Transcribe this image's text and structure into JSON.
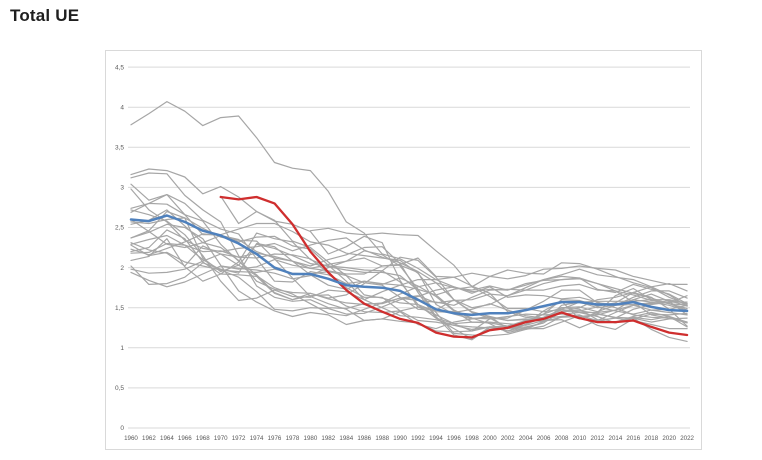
{
  "page": {
    "title": "Total UE"
  },
  "chart_data": {
    "type": "line",
    "title": "Total UE",
    "legend": "none",
    "grid": "horizontal",
    "x_years": [
      1960,
      1962,
      1964,
      1966,
      1968,
      1970,
      1972,
      1974,
      1976,
      1978,
      1980,
      1982,
      1984,
      1986,
      1988,
      1990,
      1992,
      1994,
      1996,
      1998,
      2000,
      2002,
      2004,
      2006,
      2008,
      2010,
      2012,
      2014,
      2016,
      2018,
      2020,
      2022
    ],
    "x_tick_labels": [
      "1960",
      "1962",
      "1964",
      "1966",
      "1968",
      "1970",
      "1972",
      "1974",
      "1976",
      "1978",
      "1980",
      "1982",
      "1984",
      "1986",
      "1988",
      "1990",
      "1992",
      "1994",
      "1996",
      "1998",
      "2000",
      "2002",
      "2004",
      "2006",
      "2008",
      "2010",
      "2012",
      "2014",
      "2016",
      "2018",
      "2020",
      "2022"
    ],
    "y_axis": {
      "min": 0,
      "max": 4.5,
      "tick_values": [
        0,
        0.5,
        1,
        1.5,
        2,
        2.5,
        3,
        3.5,
        4,
        4.5
      ],
      "tick_labels": [
        "0",
        "0,5",
        "1",
        "1,5",
        "2",
        "2,5",
        "3",
        "3,5",
        "4",
        "4,5"
      ]
    },
    "colors": {
      "member": "#a6a6a6",
      "highlight": "#cf2e2e",
      "average": "#4f81bd",
      "gridline": "#d9d9d9",
      "axis_text": "#595959",
      "border": "#d9d9d9",
      "title_text": "#1f1f1f"
    },
    "series": [
      {
        "name": "member-01",
        "role": "member",
        "values": [
          3.78,
          3.92,
          4.07,
          3.95,
          3.77,
          3.87,
          3.89,
          3.62,
          3.31,
          3.24,
          3.21,
          2.95,
          2.57,
          2.43,
          2.17,
          2.11,
          1.99,
          1.85,
          1.88,
          1.93,
          1.89,
          1.97,
          1.93,
          1.92,
          2.06,
          2.05,
          1.98,
          1.89,
          1.81,
          1.75,
          1.63,
          1.54
        ]
      },
      {
        "name": "member-02",
        "role": "member",
        "values": [
          2.74,
          2.8,
          2.91,
          2.8,
          2.59,
          2.48,
          2.42,
          2.11,
          1.83,
          1.82,
          1.95,
          1.91,
          1.8,
          1.83,
          1.8,
          1.78,
          1.73,
          1.66,
          1.73,
          1.76,
          1.89,
          1.86,
          1.9,
          1.98,
          1.99,
          2.02,
          1.99,
          1.97,
          1.89,
          1.84,
          1.79,
          1.79
        ]
      },
      {
        "name": "member-03",
        "role": "member",
        "values": [
          2.37,
          2.46,
          2.7,
          2.62,
          2.49,
          2.38,
          2.34,
          2.33,
          2.11,
          1.87,
          1.64,
          1.55,
          1.48,
          1.34,
          1.36,
          1.33,
          1.31,
          1.21,
          1.2,
          1.21,
          1.26,
          1.27,
          1.34,
          1.37,
          1.45,
          1.46,
          1.43,
          1.37,
          1.34,
          1.29,
          1.24,
          1.24
        ]
      },
      {
        "name": "member-04",
        "role": "member",
        "values": [
          2.37,
          2.44,
          2.54,
          2.5,
          2.36,
          2.03,
          1.71,
          1.57,
          1.46,
          1.39,
          1.44,
          1.41,
          1.29,
          1.34,
          1.36,
          1.45,
          1.29,
          1.24,
          1.32,
          1.36,
          1.38,
          1.34,
          1.36,
          1.33,
          1.38,
          1.39,
          1.41,
          1.47,
          1.6,
          1.57,
          1.53,
          1.46
        ]
      },
      {
        "name": "member-05",
        "role": "member",
        "values": [
          3.12,
          3.18,
          3.17,
          2.9,
          2.72,
          2.57,
          2.15,
          1.77,
          1.63,
          1.58,
          1.6,
          1.5,
          1.49,
          1.55,
          1.55,
          1.62,
          1.59,
          1.57,
          1.53,
          1.63,
          1.72,
          1.73,
          1.72,
          1.72,
          1.77,
          1.79,
          1.72,
          1.71,
          1.66,
          1.59,
          1.55,
          1.49
        ]
      },
      {
        "name": "member-06",
        "role": "member",
        "values": [
          2.54,
          2.59,
          2.72,
          2.52,
          2.31,
          2.25,
          2.09,
          1.83,
          1.73,
          1.69,
          1.68,
          1.61,
          1.56,
          1.54,
          1.56,
          1.62,
          1.65,
          1.56,
          1.59,
          1.6,
          1.67,
          1.65,
          1.72,
          1.8,
          1.85,
          1.86,
          1.8,
          1.74,
          1.68,
          1.62,
          1.55,
          1.53
        ]
      },
      {
        "name": "member-07",
        "role": "member",
        "values": [
          2.57,
          2.55,
          2.6,
          2.62,
          2.12,
          1.95,
          2.03,
          1.9,
          1.75,
          1.67,
          1.55,
          1.43,
          1.4,
          1.48,
          1.56,
          1.67,
          1.76,
          1.81,
          1.75,
          1.72,
          1.77,
          1.72,
          1.78,
          1.85,
          1.89,
          1.87,
          1.73,
          1.69,
          1.79,
          1.73,
          1.67,
          1.55
        ]
      },
      {
        "name": "member-08",
        "role": "member",
        "values": [
          2.23,
          2.16,
          2.24,
          2.32,
          2.42,
          2.4,
          2.32,
          2.38,
          2.39,
          2.27,
          2.23,
          2.03,
          1.83,
          1.6,
          1.5,
          1.4,
          1.38,
          1.35,
          1.28,
          1.26,
          1.25,
          1.27,
          1.31,
          1.42,
          1.5,
          1.48,
          1.35,
          1.31,
          1.38,
          1.35,
          1.39,
          1.32
        ]
      },
      {
        "name": "member-09",
        "role": "member",
        "values": [
          3.16,
          3.23,
          3.21,
          3.13,
          2.92,
          3.01,
          2.88,
          2.7,
          2.59,
          2.33,
          2.25,
          2.07,
          1.9,
          1.66,
          1.62,
          1.56,
          1.54,
          1.45,
          1.44,
          1.48,
          1.55,
          1.47,
          1.4,
          1.37,
          1.39,
          1.39,
          1.28,
          1.23,
          1.36,
          1.42,
          1.41,
          1.43
        ]
      },
      {
        "name": "member-10",
        "role": "member",
        "values": [
          2.2,
          2.25,
          2.47,
          2.36,
          2.07,
          1.92,
          1.91,
          1.89,
          1.68,
          1.6,
          1.68,
          1.62,
          1.66,
          1.8,
          1.96,
          2.13,
          2.09,
          1.88,
          1.6,
          1.5,
          1.54,
          1.65,
          1.75,
          1.85,
          1.91,
          1.98,
          1.91,
          1.88,
          1.85,
          1.76,
          1.66,
          1.52
        ]
      },
      {
        "name": "member-11",
        "role": "member",
        "values": [
          2.72,
          2.66,
          2.58,
          2.41,
          2.15,
          1.83,
          1.59,
          1.62,
          1.72,
          1.64,
          1.63,
          1.72,
          1.7,
          1.6,
          1.7,
          1.78,
          1.85,
          1.85,
          1.76,
          1.7,
          1.73,
          1.72,
          1.8,
          1.84,
          1.85,
          1.87,
          1.8,
          1.71,
          1.57,
          1.41,
          1.37,
          1.32
        ]
      },
      {
        "name": "member-12",
        "role": "member",
        "values": [
          2.69,
          2.8,
          2.79,
          2.66,
          2.58,
          2.29,
          2.08,
          1.91,
          1.69,
          1.6,
          1.65,
          1.66,
          1.52,
          1.45,
          1.44,
          1.46,
          1.51,
          1.47,
          1.45,
          1.37,
          1.36,
          1.39,
          1.42,
          1.41,
          1.42,
          1.44,
          1.44,
          1.47,
          1.53,
          1.47,
          1.44,
          1.41
        ]
      },
      {
        "name": "member-13",
        "role": "member",
        "values": [
          2.98,
          2.72,
          2.57,
          2.34,
          2.24,
          2.2,
          2.24,
          2.26,
          2.3,
          2.21,
          2.28,
          2.34,
          2.37,
          2.22,
          2.13,
          2.06,
          1.95,
          1.81,
          1.6,
          1.44,
          1.37,
          1.25,
          1.23,
          1.27,
          1.39,
          1.41,
          1.33,
          1.32,
          1.39,
          1.44,
          1.39,
          1.26
        ]
      },
      {
        "name": "member-14",
        "role": "member",
        "values": [
          2.02,
          1.79,
          1.8,
          1.88,
          2.06,
          1.98,
          1.93,
          2.3,
          2.26,
          2.08,
          1.91,
          1.78,
          1.73,
          1.83,
          1.79,
          1.87,
          1.77,
          1.64,
          1.46,
          1.32,
          1.32,
          1.3,
          1.28,
          1.34,
          1.35,
          1.25,
          1.34,
          1.44,
          1.53,
          1.55,
          1.59,
          1.52
        ]
      },
      {
        "name": "member-15",
        "role": "member",
        "values": [
          2.09,
          2.14,
          2.36,
          2.01,
          1.83,
          1.92,
          2.07,
          2.43,
          2.36,
          2.32,
          2.1,
          2.01,
          1.97,
          1.94,
          1.94,
          1.9,
          1.72,
          1.44,
          1.18,
          1.16,
          1.15,
          1.17,
          1.23,
          1.33,
          1.5,
          1.51,
          1.45,
          1.53,
          1.63,
          1.71,
          1.71,
          1.62
        ]
      },
      {
        "name": "member-16",
        "role": "member",
        "values": [
          3.04,
          2.84,
          2.91,
          2.66,
          2.41,
          2.41,
          2.48,
          2.55,
          2.55,
          2.45,
          2.32,
          2.28,
          2.18,
          2.15,
          2.12,
          2.09,
          1.93,
          1.66,
          1.47,
          1.37,
          1.3,
          1.19,
          1.24,
          1.24,
          1.32,
          1.4,
          1.34,
          1.37,
          1.48,
          1.54,
          1.57,
          1.57
        ]
      },
      {
        "name": "member-17",
        "role": "member",
        "values": [
          2.31,
          2.22,
          2.18,
          2.02,
          2.27,
          2.17,
          2.03,
          2.29,
          2.24,
          2.15,
          2.05,
          2.02,
          2.0,
          1.97,
          1.96,
          1.82,
          1.54,
          1.37,
          1.24,
          1.11,
          1.26,
          1.21,
          1.29,
          1.38,
          1.48,
          1.57,
          1.5,
          1.53,
          1.54,
          1.56,
          1.56,
          1.65
        ]
      },
      {
        "name": "member-18",
        "role": "member",
        "values": [
          null,
          null,
          null,
          null,
          null,
          2.89,
          2.55,
          2.7,
          2.58,
          2.54,
          2.45,
          2.17,
          2.26,
          2.39,
          2.31,
          1.84,
          1.51,
          1.41,
          1.3,
          1.32,
          1.31,
          1.27,
          1.33,
          1.42,
          1.6,
          1.59,
          1.52,
          1.56,
          1.69,
          1.76,
          1.8,
          1.71
        ]
      },
      {
        "name": "member-19",
        "role": "member",
        "values": [
          1.98,
          1.93,
          1.94,
          1.98,
          2.08,
          2.17,
          2.13,
          2.18,
          2.14,
          2.08,
          2.02,
          2.1,
          2.16,
          2.25,
          2.26,
          2.05,
          1.69,
          1.37,
          1.3,
          1.21,
          1.36,
          1.37,
          1.47,
          1.58,
          1.72,
          1.72,
          1.56,
          1.54,
          1.6,
          1.67,
          1.58,
          1.41
        ]
      },
      {
        "name": "member-20",
        "role": "member",
        "values": [
          1.94,
          1.84,
          1.76,
          1.82,
          1.92,
          2.02,
          1.99,
          1.97,
          1.93,
          1.86,
          1.9,
          2.0,
          2.08,
          2.21,
          2.16,
          2.02,
          1.73,
          1.39,
          1.16,
          1.1,
          1.25,
          1.24,
          1.29,
          1.46,
          1.58,
          1.36,
          1.44,
          1.65,
          1.74,
          1.6,
          1.55,
          1.47
        ]
      },
      {
        "name": "member-21",
        "role": "member",
        "values": [
          2.6,
          2.45,
          2.29,
          2.25,
          2.31,
          2.4,
          2.35,
          2.2,
          2.12,
          2.08,
          1.99,
          2.04,
          2.08,
          2.12,
          2.02,
          2.03,
          1.94,
          1.54,
          1.42,
          1.36,
          1.39,
          1.24,
          1.26,
          1.31,
          1.45,
          1.5,
          1.6,
          1.63,
          1.69,
          1.63,
          1.48,
          1.27
        ]
      },
      {
        "name": "member-22",
        "role": "member",
        "values": [
          2.18,
          2.19,
          2.3,
          2.28,
          2.2,
          2.21,
          2.13,
          2.12,
          2.17,
          2.16,
          2.11,
          1.93,
          1.75,
          1.63,
          1.63,
          1.46,
          1.34,
          1.32,
          1.28,
          1.23,
          1.26,
          1.21,
          1.25,
          1.31,
          1.53,
          1.57,
          1.58,
          1.58,
          1.58,
          1.6,
          1.6,
          1.55
        ]
      },
      {
        "name": "member-23",
        "role": "member",
        "values": [
          2.29,
          2.35,
          2.4,
          2.28,
          2.1,
          1.97,
          1.88,
          1.7,
          1.48,
          1.46,
          1.5,
          1.49,
          1.42,
          1.43,
          1.51,
          1.6,
          1.64,
          1.72,
          1.76,
          1.68,
          1.76,
          1.63,
          1.66,
          1.65,
          1.61,
          1.63,
          1.57,
          1.5,
          1.41,
          1.38,
          1.37,
          1.31
        ]
      },
      {
        "name": "member-24",
        "role": "member",
        "values": [
          null,
          null,
          null,
          null,
          null,
          2.02,
          1.98,
          2.01,
          2.1,
          2.03,
          1.99,
          1.96,
          1.92,
          1.92,
          2.02,
          2.04,
          2.12,
          1.89,
          1.88,
          1.77,
          1.68,
          1.45,
          1.38,
          1.36,
          1.43,
          1.36,
          1.42,
          1.38,
          1.37,
          1.23,
          1.13,
          1.08
        ]
      },
      {
        "name": "member-25",
        "role": "member",
        "values": [
          null,
          null,
          null,
          null,
          null,
          null,
          null,
          null,
          null,
          null,
          2.46,
          2.49,
          2.43,
          2.41,
          2.43,
          2.41,
          2.4,
          2.21,
          2.03,
          1.76,
          1.64,
          1.49,
          1.49,
          1.45,
          1.48,
          1.44,
          1.39,
          1.31,
          1.37,
          1.32,
          1.36,
          1.37
        ]
      },
      {
        "name": "member-26",
        "role": "member",
        "values": [
          2.28,
          2.15,
          2.19,
          2.07,
          2.02,
          1.97,
          1.95,
          1.94,
          1.98,
          1.93,
          1.92,
          1.95,
          1.9,
          1.81,
          1.78,
          1.63,
          1.48,
          1.47,
          1.6,
          1.45,
          1.39,
          1.34,
          1.35,
          1.38,
          1.47,
          1.46,
          1.51,
          1.46,
          1.42,
          1.47,
          1.48,
          1.53
        ]
      },
      {
        "name": "highlighted-series",
        "role": "highlight",
        "values": [
          null,
          null,
          null,
          null,
          null,
          2.88,
          2.85,
          2.88,
          2.8,
          2.54,
          2.2,
          1.94,
          1.72,
          1.55,
          1.45,
          1.36,
          1.31,
          1.19,
          1.14,
          1.13,
          1.22,
          1.25,
          1.32,
          1.36,
          1.44,
          1.37,
          1.32,
          1.32,
          1.34,
          1.26,
          1.19,
          1.16
        ]
      },
      {
        "name": "average-series",
        "role": "average",
        "values": [
          2.6,
          2.58,
          2.65,
          2.57,
          2.46,
          2.4,
          2.3,
          2.17,
          2.0,
          1.92,
          1.92,
          1.86,
          1.78,
          1.76,
          1.75,
          1.71,
          1.6,
          1.48,
          1.43,
          1.41,
          1.43,
          1.43,
          1.47,
          1.52,
          1.57,
          1.57,
          1.54,
          1.54,
          1.57,
          1.51,
          1.47,
          1.46
        ]
      }
    ]
  }
}
